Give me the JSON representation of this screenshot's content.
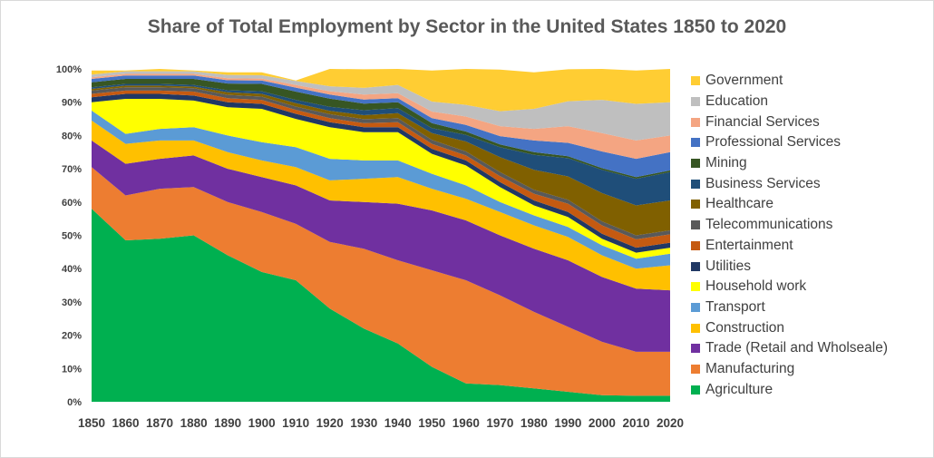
{
  "chart_data": {
    "type": "area",
    "stacked": true,
    "title": "Share of Total Employment by Sector in the United States 1850 to 2020",
    "xlabel": "",
    "ylabel": "",
    "ylim": [
      0,
      100
    ],
    "y_ticks": [
      "0%",
      "10%",
      "20%",
      "30%",
      "40%",
      "50%",
      "60%",
      "70%",
      "80%",
      "90%",
      "100%"
    ],
    "categories": [
      "1850",
      "1860",
      "1870",
      "1880",
      "1890",
      "1900",
      "1910",
      "1920",
      "1930",
      "1940",
      "1950",
      "1960",
      "1970",
      "1980",
      "1990",
      "2000",
      "2010",
      "2020"
    ],
    "legend_position": "right",
    "series": [
      {
        "name": "Agriculture",
        "color": "#00b050",
        "values": [
          58,
          48.5,
          49,
          50,
          44,
          39,
          36.5,
          28,
          22,
          17.5,
          10.5,
          5.5,
          5,
          4,
          3,
          2,
          1.8,
          1.8
        ]
      },
      {
        "name": "Manufacturing",
        "color": "#ed7d31",
        "values": [
          12.5,
          13.5,
          15,
          14.5,
          16,
          18,
          17,
          20,
          24,
          25,
          29,
          31,
          27,
          23,
          19.5,
          16,
          13.2,
          13.2
        ]
      },
      {
        "name": "Trade (Retail and Wholseale)",
        "color": "#7030a0",
        "values": [
          8,
          9.5,
          9,
          9.5,
          10,
          10.5,
          11.5,
          12.5,
          14,
          17,
          18,
          18,
          18,
          19,
          20,
          19.5,
          19,
          18.5
        ]
      },
      {
        "name": "Construction",
        "color": "#ffc000",
        "values": [
          6,
          6,
          5.5,
          4.5,
          5,
          5,
          5.5,
          6,
          7,
          8,
          6.5,
          6.5,
          7,
          7,
          7,
          6.5,
          6,
          7.5
        ]
      },
      {
        "name": "Transport",
        "color": "#5b9bd5",
        "values": [
          3,
          3,
          3.5,
          4,
          5,
          5.5,
          6,
          6.5,
          5.5,
          5,
          4.5,
          4,
          3,
          3,
          3,
          3,
          3,
          3.5
        ]
      },
      {
        "name": "Household work",
        "color": "#ffff00",
        "values": [
          2.5,
          10.5,
          9,
          8,
          8.5,
          10,
          8.5,
          9.5,
          8.5,
          8.5,
          6,
          6,
          4.5,
          3,
          3,
          2,
          1.8,
          1.8
        ]
      },
      {
        "name": "Utilities",
        "color": "#203864",
        "values": [
          1.5,
          1.5,
          1.5,
          1.5,
          1.5,
          1.5,
          1.5,
          1.5,
          1.5,
          1.5,
          1.5,
          1.5,
          1.5,
          1.5,
          1.5,
          1.5,
          1.5,
          1.5
        ]
      },
      {
        "name": "Entertainment",
        "color": "#c55a11",
        "values": [
          1,
          1,
          1,
          1.2,
          1.2,
          1.2,
          1.2,
          1.2,
          1.2,
          1.5,
          1.5,
          1.5,
          1.8,
          2,
          2.5,
          2.5,
          2.5,
          2.5
        ]
      },
      {
        "name": "Telecommunications",
        "color": "#595959",
        "values": [
          1,
          1,
          1,
          1,
          1,
          1,
          1,
          1.2,
          1.2,
          1.2,
          1.2,
          1.2,
          1.2,
          1.2,
          1.2,
          1.2,
          1.2,
          1.2
        ]
      },
      {
        "name": "Healthcare",
        "color": "#806000",
        "values": [
          0.5,
          0.5,
          0.5,
          0.5,
          0.8,
          0.8,
          1,
          1,
          1.2,
          1.5,
          2,
          3,
          4.5,
          6,
          7,
          8.5,
          9,
          9
        ]
      },
      {
        "name": "Business Services",
        "color": "#1f4e79",
        "values": [
          0.5,
          0.5,
          0.5,
          0.5,
          0.6,
          0.8,
          1,
          1.2,
          1.5,
          1.5,
          1.5,
          2,
          3,
          4.5,
          5.5,
          7,
          8,
          8.5
        ]
      },
      {
        "name": "Mining",
        "color": "#375623",
        "values": [
          1.5,
          1.5,
          1.5,
          1.8,
          2,
          2.2,
          2.5,
          2.5,
          2,
          1.8,
          1.5,
          1,
          0.8,
          0.8,
          0.6,
          0.5,
          0.5,
          0.5
        ]
      },
      {
        "name": "Professional Services",
        "color": "#4472c4",
        "values": [
          1,
          1,
          1,
          1,
          1,
          1,
          1.2,
          1.2,
          1.2,
          1.2,
          1.5,
          2,
          2.5,
          3.5,
          4,
          5,
          5.5,
          5.5
        ]
      },
      {
        "name": "Financial Services",
        "color": "#f4a582",
        "values": [
          0.5,
          0.5,
          0.5,
          0.5,
          0.6,
          0.6,
          0.8,
          1,
          1.5,
          1.5,
          2,
          2.5,
          3,
          3.5,
          5,
          5.5,
          5.5,
          5
        ]
      },
      {
        "name": "Education",
        "color": "#bfbfbf",
        "values": [
          0.8,
          0.8,
          0.8,
          0.8,
          1,
          1,
          1.2,
          1.5,
          2,
          2.5,
          3,
          3.5,
          4.5,
          6,
          7.5,
          10,
          11,
          10
        ]
      },
      {
        "name": "Government",
        "color": "#ffcd33",
        "values": [
          1.2,
          0.2,
          0.7,
          0.2,
          0.8,
          0.9,
          0.1,
          6.2,
          5.6,
          5.3,
          9.3,
          10.8,
          12.5,
          11,
          9.6,
          9.3,
          10,
          10
        ]
      }
    ]
  }
}
